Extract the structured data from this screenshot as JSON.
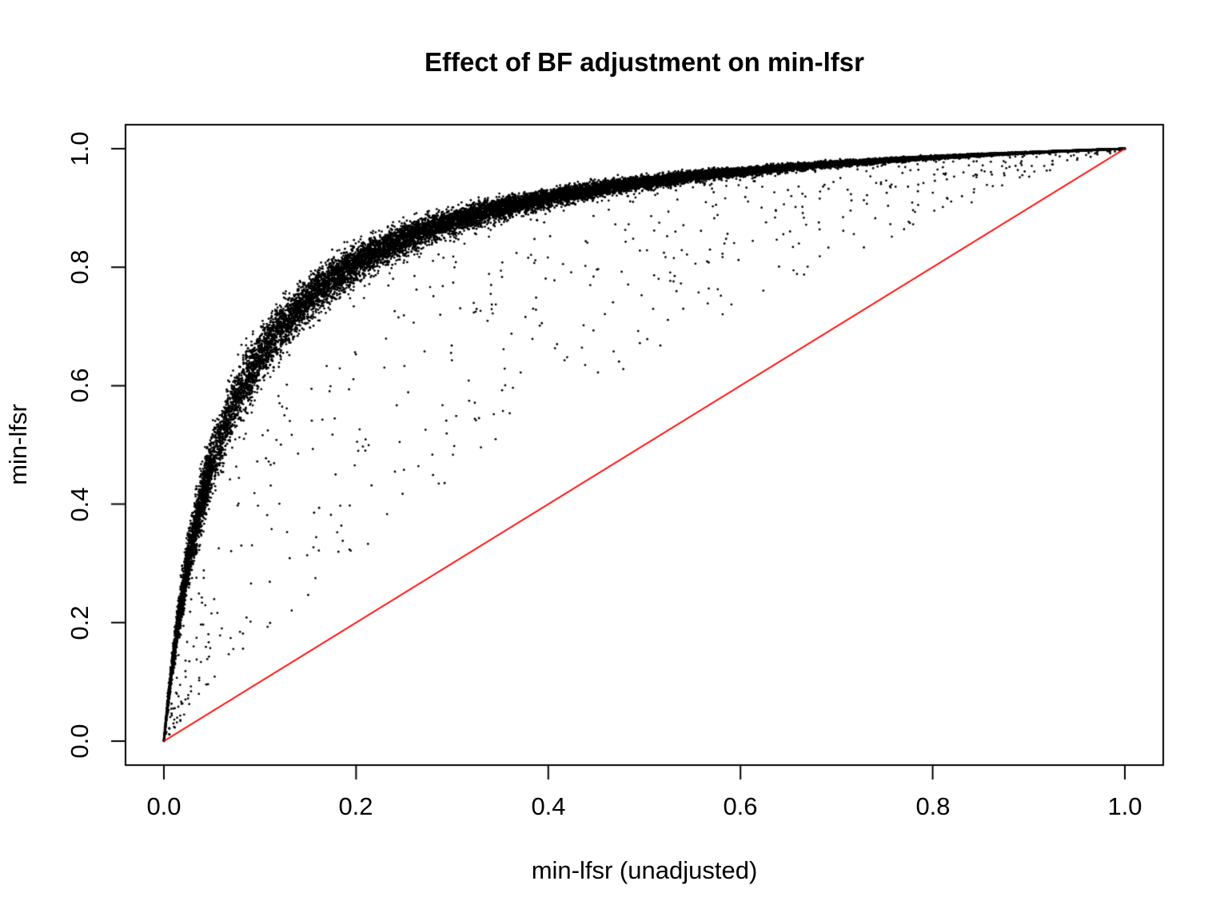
{
  "title": "Effect of BF adjustment on min-lfsr",
  "chart_data": {
    "type": "scatter",
    "title": "Effect of BF adjustment on min-lfsr",
    "xlabel": "min-lfsr (unadjusted)",
    "ylabel": "min-lfsr",
    "xlim": [
      0,
      1
    ],
    "ylim": [
      0,
      1
    ],
    "grid": false,
    "legend": null,
    "background_color": "#FFFFFF",
    "axis_color": "#000000",
    "point_color": "#000000",
    "x_ticks": [
      "0.0",
      "0.2",
      "0.4",
      "0.6",
      "0.8",
      "1.0"
    ],
    "y_ticks": [
      "0.0",
      "0.2",
      "0.4",
      "0.6",
      "0.8",
      "1.0"
    ],
    "x_tick_values": [
      0,
      0.2,
      0.4,
      0.6,
      0.8,
      1.0
    ],
    "y_tick_values": [
      0,
      0.2,
      0.4,
      0.6,
      0.8,
      1.0
    ],
    "reference_line": {
      "from": [
        0,
        0
      ],
      "to": [
        1,
        1
      ],
      "color": "#FF0000",
      "meaning": "y = x (no adjustment)"
    },
    "scatter_model": {
      "description": "Dense band of points: adjusted min-lfsr (y) is pushed far above unadjusted min-lfsr (x); band follows y = x / (x + c*(1-x)) with c ~ 0.06, with sparse straggler points between the band and the red y=x line.",
      "curve_c": 0.06,
      "curve_points": [
        [
          0.0,
          0.0
        ],
        [
          0.01,
          0.144
        ],
        [
          0.02,
          0.254
        ],
        [
          0.05,
          0.467
        ],
        [
          0.1,
          0.649
        ],
        [
          0.15,
          0.746
        ],
        [
          0.2,
          0.806
        ],
        [
          0.3,
          0.877
        ],
        [
          0.4,
          0.917
        ],
        [
          0.5,
          0.943
        ],
        [
          0.6,
          0.962
        ],
        [
          0.7,
          0.975
        ],
        [
          0.8,
          0.985
        ],
        [
          0.9,
          0.993
        ],
        [
          1.0,
          1.0
        ]
      ],
      "n_points": 24000,
      "noise_sigma": 0.1,
      "low_x_boost_fraction": 0.06,
      "low_x_boost_max": 0.05,
      "outlier_fraction": 0.025,
      "outlier_c_range": [
        0.075,
        0.55
      ],
      "point_radius_px": 1.4,
      "seed": 1234
    }
  }
}
